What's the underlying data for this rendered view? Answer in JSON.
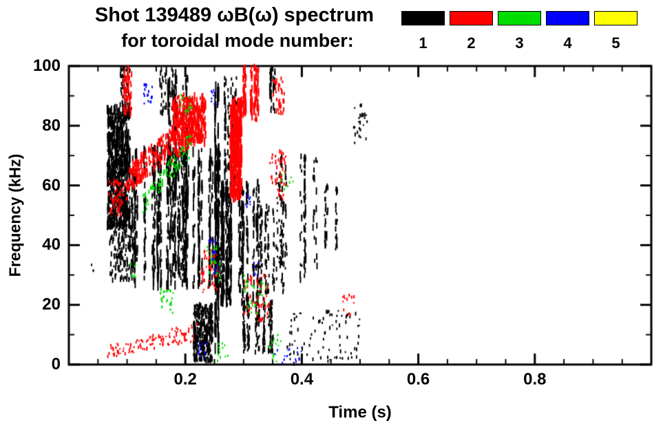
{
  "chart_data": {
    "type": "scatter",
    "description": "Mirnov-coil spectrogram of mode activity; points colored by toroidal mode number",
    "title": "Shot 139489 ωB(ω) spectrum",
    "subtitle": "for toroidal mode number:",
    "xlabel": "Time (s)",
    "ylabel": "Frequency (kHz)",
    "xlim": [
      0,
      1.0
    ],
    "ylim": [
      0,
      100
    ],
    "grid": false,
    "legend_position": "top-right",
    "xticks": {
      "major": [
        0.2,
        0.4,
        0.6,
        0.8
      ],
      "labels": [
        "0.2",
        "0.4",
        "0.6",
        "0.8"
      ],
      "minor_step": 0.05
    },
    "yticks": {
      "major": [
        0,
        20,
        40,
        60,
        80,
        100
      ],
      "labels": [
        "0",
        "20",
        "40",
        "60",
        "80",
        "100"
      ],
      "minor_step": 10
    },
    "legend": {
      "items": [
        {
          "label": "1",
          "color": "#000000"
        },
        {
          "label": "2",
          "color": "#ff0000"
        },
        {
          "label": "3",
          "color": "#00dd00"
        },
        {
          "label": "4",
          "color": "#0000ff"
        },
        {
          "label": "5",
          "color": "#ffff00"
        }
      ]
    },
    "mode_colors": {
      "1": "#000000",
      "2": "#ff0000",
      "3": "#00dd00",
      "4": "#0000ff",
      "5": "#ffff00"
    },
    "clusters": [
      {
        "mode": 1,
        "t": [
          0.066,
          0.105
        ],
        "f": [
          46,
          86
        ],
        "n": 650,
        "dash": [
          4,
          14
        ]
      },
      {
        "mode": 1,
        "t": [
          0.07,
          0.115
        ],
        "f": [
          28,
          48
        ],
        "n": 160,
        "dash": [
          3,
          9
        ]
      },
      {
        "mode": 1,
        "t": [
          0.088,
          0.105
        ],
        "f": [
          86,
          100
        ],
        "n": 45,
        "dash": [
          3,
          9
        ]
      },
      {
        "mode": 1,
        "t": [
          0.1,
          0.27
        ],
        "f": [
          26,
          72
        ],
        "n": 850,
        "dash": [
          4,
          16
        ],
        "cols": 42
      },
      {
        "mode": 1,
        "t": [
          0.168,
          0.205
        ],
        "f": [
          55,
          97
        ],
        "n": 140,
        "dash": [
          5,
          18
        ],
        "cols": 9
      },
      {
        "mode": 1,
        "t": [
          0.155,
          0.178
        ],
        "f": [
          84,
          100
        ],
        "n": 40,
        "dash": [
          3,
          9
        ],
        "cols": 5
      },
      {
        "mode": 1,
        "t": [
          0.251,
          0.263
        ],
        "f": [
          5,
          96
        ],
        "n": 90,
        "dash": [
          8,
          28
        ],
        "cols": 2
      },
      {
        "mode": 1,
        "t": [
          0.262,
          0.325
        ],
        "f": [
          20,
          62
        ],
        "n": 480,
        "dash": [
          4,
          14
        ],
        "cols": 20
      },
      {
        "mode": 1,
        "t": [
          0.268,
          0.29
        ],
        "f": [
          62,
          96
        ],
        "n": 90,
        "dash": [
          4,
          12
        ],
        "cols": 6
      },
      {
        "mode": 1,
        "t": [
          0.214,
          0.247
        ],
        "f": [
          1,
          20
        ],
        "n": 330,
        "dash": [
          3,
          9
        ]
      },
      {
        "mode": 1,
        "t": [
          0.3,
          0.36
        ],
        "f": [
          4,
          22
        ],
        "n": 200,
        "dash": [
          3,
          9
        ],
        "cols": 14
      },
      {
        "mode": 1,
        "t": [
          0.325,
          0.37
        ],
        "f": [
          24,
          55
        ],
        "n": 130,
        "dash": [
          3,
          10
        ],
        "cols": 9
      },
      {
        "mode": 1,
        "t": [
          0.355,
          0.43
        ],
        "f": [
          28,
          70
        ],
        "n": 150,
        "dash": [
          3,
          11
        ],
        "cols": 11
      },
      {
        "mode": 1,
        "t": [
          0.43,
          0.46
        ],
        "f": [
          38,
          60
        ],
        "n": 55,
        "dash": [
          3,
          8
        ],
        "cols": 4
      },
      {
        "mode": 1,
        "t": [
          0.375,
          0.5
        ],
        "f": [
          0,
          18
        ],
        "n": 90,
        "dash": [
          2,
          6
        ]
      },
      {
        "mode": 1,
        "t": [
          0.488,
          0.512
        ],
        "f": [
          74,
          87
        ],
        "n": 28,
        "dash": [
          2,
          6
        ]
      },
      {
        "mode": 1,
        "t": [
          0.34,
          0.355
        ],
        "f": [
          84,
          100
        ],
        "n": 40,
        "dash": [
          4,
          12
        ],
        "cols": 3
      },
      {
        "mode": 1,
        "t": [
          0.038,
          0.044
        ],
        "f": [
          30,
          34
        ],
        "n": 3,
        "dash": [
          2,
          4
        ]
      },
      {
        "mode": 2,
        "t": [
          0.1,
          0.235
        ],
        "f": [
          58,
          66
        ],
        "f2": [
          76,
          90
        ],
        "n": 380,
        "dash": [
          3,
          10
        ]
      },
      {
        "mode": 2,
        "t": [
          0.178,
          0.235
        ],
        "f": [
          74,
          90
        ],
        "n": 260,
        "dash": [
          4,
          14
        ]
      },
      {
        "mode": 2,
        "t": [
          0.093,
          0.108
        ],
        "f": [
          84,
          100
        ],
        "n": 55,
        "dash": [
          4,
          12
        ]
      },
      {
        "mode": 2,
        "t": [
          0.068,
          0.1
        ],
        "f": [
          50,
          62
        ],
        "n": 55,
        "dash": [
          3,
          8
        ]
      },
      {
        "mode": 2,
        "t": [
          0.277,
          0.297
        ],
        "f": [
          56,
          88
        ],
        "n": 300,
        "dash": [
          6,
          20
        ]
      },
      {
        "mode": 2,
        "t": [
          0.298,
          0.33
        ],
        "f": [
          82,
          100
        ],
        "n": 130,
        "dash": [
          4,
          12
        ],
        "cols": 6
      },
      {
        "mode": 2,
        "t": [
          0.06,
          0.22
        ],
        "f": [
          2,
          6
        ],
        "f2": [
          8,
          14
        ],
        "n": 110,
        "dash": [
          2,
          5
        ]
      },
      {
        "mode": 2,
        "t": [
          0.225,
          0.255
        ],
        "f": [
          24,
          38
        ],
        "n": 45,
        "dash": [
          2,
          6
        ]
      },
      {
        "mode": 2,
        "t": [
          0.3,
          0.345
        ],
        "f": [
          14,
          30
        ],
        "n": 55,
        "dash": [
          2,
          6
        ]
      },
      {
        "mode": 2,
        "t": [
          0.345,
          0.375
        ],
        "f": [
          55,
          72
        ],
        "n": 40,
        "dash": [
          2,
          7
        ]
      },
      {
        "mode": 2,
        "t": [
          0.35,
          0.37
        ],
        "f": [
          84,
          96
        ],
        "n": 35,
        "dash": [
          3,
          9
        ]
      },
      {
        "mode": 2,
        "t": [
          0.47,
          0.49
        ],
        "f": [
          16,
          24
        ],
        "n": 12,
        "dash": [
          2,
          5
        ]
      },
      {
        "mode": 3,
        "t": [
          0.125,
          0.21
        ],
        "f": [
          50,
          56
        ],
        "f2": [
          70,
          78
        ],
        "n": 85,
        "dash": [
          2,
          6
        ]
      },
      {
        "mode": 3,
        "t": [
          0.19,
          0.215
        ],
        "f": [
          84,
          92
        ],
        "n": 16,
        "dash": [
          2,
          5
        ]
      },
      {
        "mode": 3,
        "t": [
          0.155,
          0.18
        ],
        "f": [
          17,
          26
        ],
        "n": 22,
        "dash": [
          2,
          5
        ]
      },
      {
        "mode": 3,
        "t": [
          0.235,
          0.26
        ],
        "f": [
          28,
          40
        ],
        "n": 22,
        "dash": [
          2,
          5
        ]
      },
      {
        "mode": 3,
        "t": [
          0.3,
          0.34
        ],
        "f": [
          17,
          30
        ],
        "n": 28,
        "dash": [
          2,
          5
        ]
      },
      {
        "mode": 3,
        "t": [
          0.34,
          0.365
        ],
        "f": [
          1,
          10
        ],
        "n": 16,
        "dash": [
          2,
          4
        ]
      },
      {
        "mode": 3,
        "t": [
          0.105,
          0.115
        ],
        "f": [
          29,
          34
        ],
        "n": 8,
        "dash": [
          2,
          4
        ]
      },
      {
        "mode": 3,
        "t": [
          0.255,
          0.275
        ],
        "f": [
          0,
          8
        ],
        "n": 12,
        "dash": [
          2,
          4
        ]
      },
      {
        "mode": 3,
        "t": [
          0.36,
          0.385
        ],
        "f": [
          55,
          65
        ],
        "n": 10,
        "dash": [
          2,
          4
        ]
      },
      {
        "mode": 4,
        "t": [
          0.128,
          0.143
        ],
        "f": [
          87,
          94
        ],
        "n": 18,
        "dash": [
          2,
          5
        ]
      },
      {
        "mode": 4,
        "t": [
          0.24,
          0.256
        ],
        "f": [
          30,
          42
        ],
        "n": 14,
        "dash": [
          2,
          5
        ]
      },
      {
        "mode": 4,
        "t": [
          0.3,
          0.312
        ],
        "f": [
          52,
          58
        ],
        "n": 8,
        "dash": [
          2,
          4
        ]
      },
      {
        "mode": 4,
        "t": [
          0.222,
          0.238
        ],
        "f": [
          1,
          8
        ],
        "n": 12,
        "dash": [
          2,
          4
        ]
      },
      {
        "mode": 4,
        "t": [
          0.35,
          0.4
        ],
        "f": [
          0,
          6
        ],
        "n": 14,
        "dash": [
          2,
          4
        ]
      },
      {
        "mode": 4,
        "t": [
          0.243,
          0.252
        ],
        "f": [
          86,
          92
        ],
        "n": 8,
        "dash": [
          2,
          4
        ]
      },
      {
        "mode": 4,
        "t": [
          0.315,
          0.325
        ],
        "f": [
          30,
          36
        ],
        "n": 6,
        "dash": [
          2,
          4
        ]
      }
    ]
  }
}
